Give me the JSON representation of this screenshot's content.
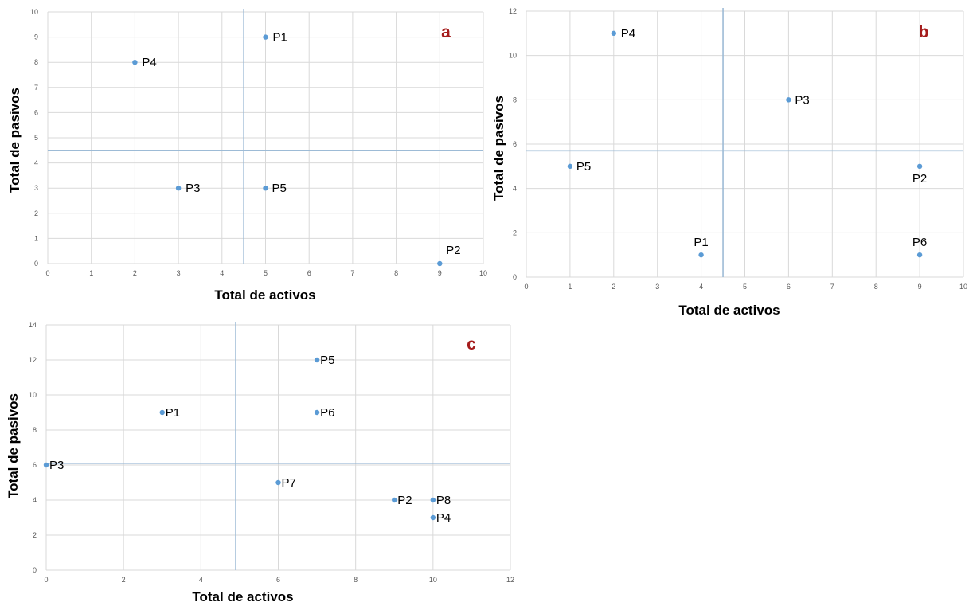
{
  "chart_data": [
    {
      "type": "scatter",
      "panel": "a",
      "xlabel": "Total de activos",
      "ylabel": "Total de pasivos",
      "xlim": [
        0,
        10
      ],
      "ylim": [
        0,
        10
      ],
      "xticks": [
        0,
        1,
        2,
        3,
        4,
        5,
        6,
        7,
        8,
        9,
        10
      ],
      "yticks": [
        0,
        1,
        2,
        3,
        4,
        5,
        6,
        7,
        8,
        9,
        10
      ],
      "grid": true,
      "quadrant_lines": {
        "x": 4.5,
        "y": 4.5
      },
      "points": [
        {
          "label": "P1",
          "x": 5,
          "y": 9
        },
        {
          "label": "P2",
          "x": 9,
          "y": 0
        },
        {
          "label": "P3",
          "x": 3,
          "y": 3
        },
        {
          "label": "P4",
          "x": 2,
          "y": 8
        },
        {
          "label": "P5",
          "x": 5,
          "y": 3
        }
      ],
      "colors": {
        "points": "#5b9bd5",
        "quadrant_lines": "#9dbbd6",
        "panel_letter": "#a51c1c"
      }
    },
    {
      "type": "scatter",
      "panel": "b",
      "xlabel": "Total de activos",
      "ylabel": "Total de pasivos",
      "xlim": [
        0,
        10
      ],
      "ylim": [
        0,
        12
      ],
      "xticks": [
        0,
        1,
        2,
        3,
        4,
        5,
        6,
        7,
        8,
        9,
        10
      ],
      "yticks": [
        0,
        2,
        4,
        6,
        8,
        10,
        12
      ],
      "grid": true,
      "quadrant_lines": {
        "x": 4.5,
        "y": 5.7
      },
      "points": [
        {
          "label": "P1",
          "x": 4,
          "y": 1
        },
        {
          "label": "P2",
          "x": 9,
          "y": 5
        },
        {
          "label": "P3",
          "x": 6,
          "y": 8
        },
        {
          "label": "P4",
          "x": 2,
          "y": 11
        },
        {
          "label": "P5",
          "x": 1,
          "y": 5
        },
        {
          "label": "P6",
          "x": 9,
          "y": 1
        }
      ],
      "colors": {
        "points": "#5b9bd5",
        "quadrant_lines": "#9dbbd6",
        "panel_letter": "#a51c1c"
      }
    },
    {
      "type": "scatter",
      "panel": "c",
      "xlabel": "Total de activos",
      "ylabel": "Total de pasivos",
      "xlim": [
        0,
        12
      ],
      "ylim": [
        0,
        14
      ],
      "xticks": [
        0,
        2,
        4,
        6,
        8,
        10,
        12
      ],
      "yticks": [
        0,
        2,
        4,
        6,
        8,
        10,
        12,
        14
      ],
      "grid": true,
      "quadrant_lines": {
        "x": 4.9,
        "y": 6.1
      },
      "points": [
        {
          "label": "P1",
          "x": 3,
          "y": 9
        },
        {
          "label": "P2",
          "x": 9,
          "y": 4
        },
        {
          "label": "P3",
          "x": 0,
          "y": 6
        },
        {
          "label": "P4",
          "x": 10,
          "y": 3
        },
        {
          "label": "P5",
          "x": 7,
          "y": 12
        },
        {
          "label": "P6",
          "x": 7,
          "y": 9
        },
        {
          "label": "P7",
          "x": 6,
          "y": 5
        },
        {
          "label": "P8",
          "x": 10,
          "y": 4
        }
      ],
      "colors": {
        "points": "#5b9bd5",
        "quadrant_lines": "#9dbbd6",
        "panel_letter": "#a51c1c"
      }
    }
  ]
}
